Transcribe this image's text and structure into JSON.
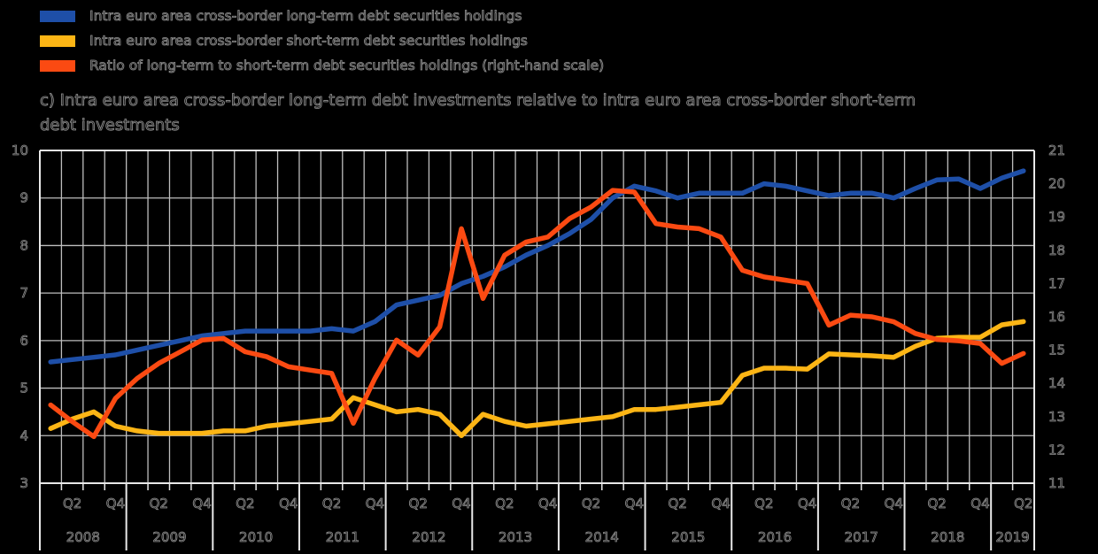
{
  "legend": {
    "items": [
      {
        "label": "Intra euro area cross-border long-term debt securities holdings",
        "color": "#1e4fa8"
      },
      {
        "label": "Intra euro area cross-border short-term debt securities holdings",
        "color": "#fcb515"
      },
      {
        "label": "Ratio of long-term to short-term debt securities holdings (right-hand scale)",
        "color": "#fb4a12"
      }
    ]
  },
  "title": {
    "line1": "c) Intra euro area cross-border long-term debt investments relative to intra euro area cross-border short-term",
    "line2": "debt investments"
  },
  "chart_data": {
    "type": "line",
    "x_quarters": [
      "2008Q1",
      "2008Q2",
      "2008Q3",
      "2008Q4",
      "2009Q1",
      "2009Q2",
      "2009Q3",
      "2009Q4",
      "2010Q1",
      "2010Q2",
      "2010Q3",
      "2010Q4",
      "2011Q1",
      "2011Q2",
      "2011Q3",
      "2011Q4",
      "2012Q1",
      "2012Q2",
      "2012Q3",
      "2012Q4",
      "2013Q1",
      "2013Q2",
      "2013Q3",
      "2013Q4",
      "2014Q1",
      "2014Q2",
      "2014Q3",
      "2014Q4",
      "2015Q1",
      "2015Q2",
      "2015Q3",
      "2015Q4",
      "2016Q1",
      "2016Q2",
      "2016Q3",
      "2016Q4",
      "2017Q1",
      "2017Q2",
      "2017Q3",
      "2017Q4",
      "2018Q1",
      "2018Q2",
      "2018Q3",
      "2018Q4",
      "2019Q1",
      "2019Q2"
    ],
    "series": [
      {
        "name": "Intra euro area cross-border long-term debt securities holdings",
        "axis": "left",
        "color": "#1e4fa8",
        "values": [
          5.55,
          5.6,
          5.65,
          5.7,
          5.8,
          5.9,
          6.0,
          6.1,
          6.15,
          6.2,
          6.2,
          6.2,
          6.2,
          6.25,
          6.2,
          6.4,
          6.75,
          6.85,
          6.95,
          7.2,
          7.35,
          7.55,
          7.8,
          8.0,
          8.25,
          8.55,
          9.0,
          9.25,
          9.15,
          9.0,
          9.1,
          9.1,
          9.1,
          9.3,
          9.25,
          9.15,
          9.05,
          9.1,
          9.1,
          9.0,
          9.2,
          9.38,
          9.4,
          9.2,
          9.42,
          9.57
        ]
      },
      {
        "name": "Intra euro area cross-border short-term debt securities holdings",
        "axis": "left",
        "color": "#fcb515",
        "values": [
          4.15,
          4.35,
          4.5,
          4.2,
          4.1,
          4.05,
          4.05,
          4.05,
          4.1,
          4.1,
          4.2,
          4.25,
          4.3,
          4.35,
          4.8,
          4.65,
          4.5,
          4.55,
          4.45,
          4.0,
          4.45,
          4.3,
          4.2,
          4.25,
          4.3,
          4.35,
          4.4,
          4.55,
          4.55,
          4.6,
          4.65,
          4.7,
          5.27,
          5.42,
          5.42,
          5.4,
          5.72,
          5.7,
          5.68,
          5.65,
          5.88,
          6.05,
          6.07,
          6.07,
          6.33,
          6.4
        ]
      },
      {
        "name": "Ratio of long-term to short-term debt securities holdings (right-hand scale)",
        "axis": "right",
        "color": "#fb4a12",
        "values": [
          13.35,
          12.85,
          12.4,
          13.55,
          14.15,
          14.6,
          14.95,
          15.3,
          15.35,
          14.95,
          14.8,
          14.5,
          14.4,
          14.3,
          12.8,
          14.15,
          15.3,
          14.85,
          15.7,
          18.65,
          16.55,
          17.85,
          18.25,
          18.4,
          18.95,
          19.3,
          19.8,
          19.75,
          18.8,
          18.7,
          18.65,
          18.4,
          17.4,
          17.2,
          17.1,
          17.0,
          15.75,
          16.05,
          16.0,
          15.85,
          15.5,
          15.32,
          15.28,
          15.2,
          14.6,
          14.9
        ]
      }
    ],
    "left_axis": {
      "min": 3,
      "max": 10,
      "ticks": [
        "10",
        "9",
        "8",
        "7",
        "6",
        "5",
        "4",
        "3"
      ]
    },
    "right_axis": {
      "min": 11,
      "max": 21,
      "ticks": [
        "21",
        "20",
        "19",
        "18",
        "17",
        "16",
        "15",
        "14",
        "13",
        "12",
        "11"
      ]
    },
    "x_axis": {
      "years": [
        "2008",
        "2009",
        "2010",
        "2011",
        "2012",
        "2013",
        "2014",
        "2015",
        "2016",
        "2017",
        "2018",
        "2019"
      ],
      "quarter_tick_labels": [
        "Q2",
        "Q4"
      ],
      "last_year_quarter_labels": [
        "Q2"
      ]
    },
    "style": {
      "background": "#000000",
      "grid_color": "#bdbdbd",
      "border_color": "#e8e8e8",
      "text_fill": "#121212",
      "text_stroke": "#8e8e8e"
    },
    "grid": true,
    "legend_position": "top-left"
  }
}
